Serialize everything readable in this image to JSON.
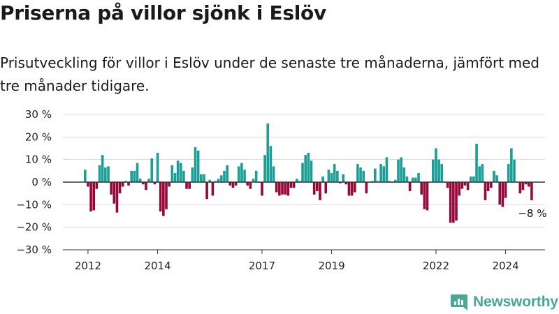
{
  "title": "Priserna på villor sjönk i Eslöv",
  "subtitle": "Prisutveckling för villor i Eslöv under de senaste tre månaderna, jämfört med tre månader tidigare.",
  "brand": {
    "name": "Newsworthy"
  },
  "colors": {
    "positive": "#1a9e96",
    "negative": "#960838",
    "grid": "#d9d9d9",
    "axis": "#333333",
    "brand": "#4aa796"
  },
  "chart_data": {
    "type": "bar",
    "x_start": "2011-12",
    "x_step": "month",
    "ylim": [
      -30,
      30
    ],
    "yticks": [
      "30 %",
      "20 %",
      "10 %",
      "0 %",
      "−10 %",
      "−20 %",
      "−30 %"
    ],
    "ytick_values": [
      30,
      20,
      10,
      0,
      -10,
      -20,
      -30
    ],
    "xticks": [
      "2012",
      "2014",
      "2017",
      "2019",
      "2022",
      "2024"
    ],
    "xtick_dates": [
      "2012-01",
      "2014-01",
      "2017-01",
      "2019-01",
      "2022-01",
      "2024-01"
    ],
    "values": [
      5.5,
      -2,
      -13,
      -12.5,
      -3,
      7.5,
      12,
      6.5,
      7,
      -5.5,
      -9.5,
      -13.5,
      -5,
      -2,
      0.5,
      -1.5,
      5,
      5,
      8.5,
      1.5,
      -1,
      -3.5,
      1.5,
      10.5,
      -1,
      13,
      -13,
      -15,
      -12,
      -2,
      7.5,
      4,
      9.5,
      8.5,
      5,
      -3,
      -3,
      6.5,
      15.5,
      14,
      3.5,
      3.5,
      -7.5,
      1,
      -6,
      0.5,
      1.5,
      3,
      5,
      7.5,
      -1.5,
      -2.5,
      -1.5,
      7,
      8.5,
      5.5,
      -1.5,
      -3,
      1.5,
      5,
      0,
      -6,
      12,
      26,
      16,
      7,
      -4.5,
      -6,
      -5.5,
      -5.5,
      -6,
      -2.5,
      -2.5,
      1.5,
      0.5,
      8.5,
      12,
      13,
      9.5,
      -5.5,
      -4,
      -8,
      2.5,
      -5,
      5.5,
      4,
      8,
      5,
      -0.5,
      3.5,
      -1,
      -6,
      -6,
      -4.5,
      8,
      6.5,
      5,
      -5,
      0,
      0.5,
      6,
      0.5,
      8,
      7,
      11,
      0.5,
      0,
      1,
      10,
      11,
      6.5,
      2.5,
      -4,
      2,
      2,
      4,
      -5.5,
      -12,
      -12.5,
      0,
      10,
      15,
      10,
      8,
      0,
      -2.5,
      -18,
      -18,
      -17,
      -6,
      -3,
      -1.5,
      -3.5,
      2.5,
      2.5,
      17,
      7,
      8,
      -8,
      -4,
      -2.5,
      5,
      3,
      -10,
      -11,
      -7,
      8,
      15,
      10,
      0,
      -5,
      -3.5,
      -1,
      -2,
      -8
    ],
    "annotation": "−8 %"
  }
}
